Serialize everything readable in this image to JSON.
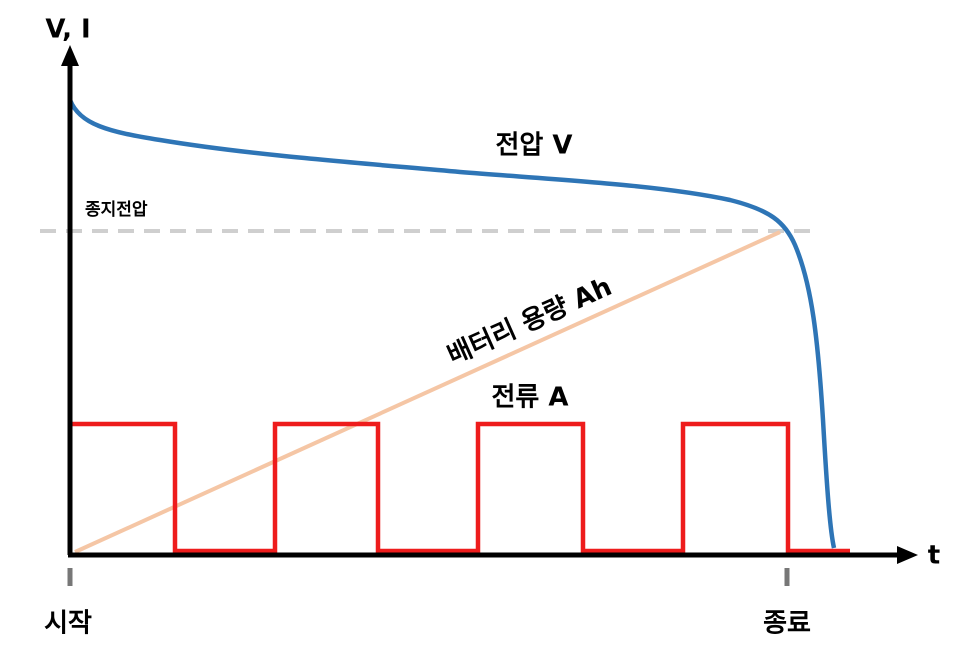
{
  "axes": {
    "y_label": "V, I",
    "x_label": "t"
  },
  "curves": {
    "voltage": "전압 V",
    "cutoff_voltage": "종지전압",
    "capacity": "배터리 용량 Ah",
    "current": "전류 A"
  },
  "markers": {
    "start": "시작",
    "end": "종료"
  }
}
